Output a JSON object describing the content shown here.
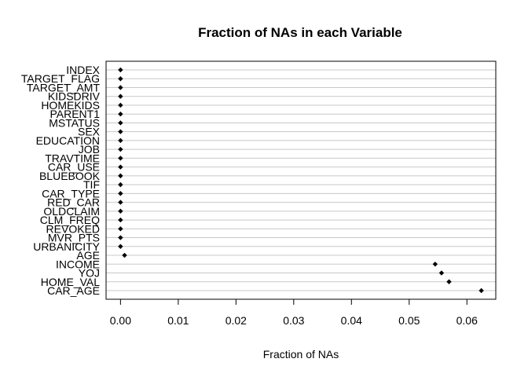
{
  "chart_data": {
    "type": "scatter",
    "title": "Fraction of NAs in each Variable",
    "xlabel": "Fraction of NAs",
    "ylabel": "",
    "xlim": [
      -0.0025,
      0.065
    ],
    "xticks": [
      "0.00",
      "0.01",
      "0.02",
      "0.03",
      "0.04",
      "0.05",
      "0.06"
    ],
    "grid": "horizontal",
    "categories": [
      "INDEX",
      "TARGET_FLAG",
      "TARGET_AMT",
      "KIDSDRIV",
      "HOMEKIDS",
      "PARENT1",
      "MSTATUS",
      "SEX",
      "EDUCATION",
      "JOB",
      "TRAVTIME",
      "CAR_USE",
      "BLUEBOOK",
      "TIF",
      "CAR_TYPE",
      "RED_CAR",
      "OLDCLAIM",
      "CLM_FREQ",
      "REVOKED",
      "MVR_PTS",
      "URBANICITY",
      "AGE",
      "INCOME",
      "YOJ",
      "HOME_VAL",
      "CAR_AGE"
    ],
    "values": [
      0,
      0,
      0,
      0,
      0,
      0,
      0,
      0,
      0,
      0,
      0,
      0,
      0,
      0,
      0,
      0,
      0,
      0,
      0,
      0,
      0,
      0.0007,
      0.0545,
      0.0556,
      0.0569,
      0.0625
    ]
  }
}
